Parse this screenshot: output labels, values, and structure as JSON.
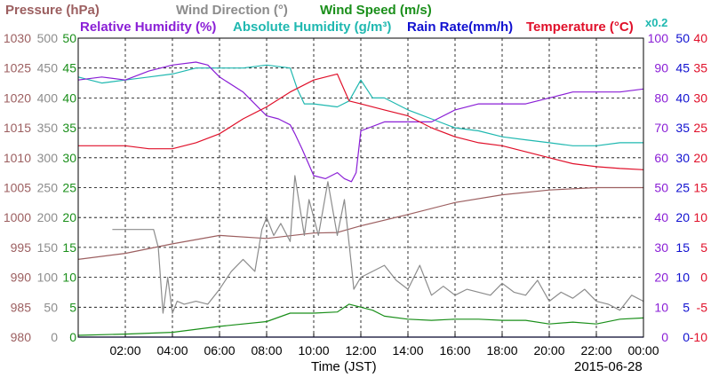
{
  "chart_data": {
    "type": "line",
    "legend": {
      "row1": [
        {
          "key": "pressure",
          "label": "Pressure (hPa)",
          "color": "#9c5f60"
        },
        {
          "key": "wind_dir",
          "label": "Wind Direction (°)",
          "color": "#8c8c8c"
        },
        {
          "key": "wind_speed",
          "label": "Wind Speed (m/s)",
          "color": "#1a8f1a"
        }
      ],
      "row2": [
        {
          "key": "rel_hum",
          "label": "Relative Humidity (%)",
          "color": "#8a1fd6"
        },
        {
          "key": "abs_hum",
          "label": "Absolute Humidity (g/m³)",
          "color": "#1fb8b0"
        },
        {
          "key": "rain",
          "label": "Rain Rate(mm/h)",
          "color": "#1010d0"
        },
        {
          "key": "temp",
          "label": "Temperature (°C)",
          "color": "#e0102a"
        }
      ],
      "note": "x0.2"
    },
    "xlabel": "Time (JST)",
    "date": "2015-06-28",
    "xlim": [
      0,
      24
    ],
    "x_ticks": [
      "02:00",
      "04:00",
      "06:00",
      "08:00",
      "10:00",
      "12:00",
      "14:00",
      "16:00",
      "18:00",
      "20:00",
      "22:00",
      "00:00"
    ],
    "axes": [
      {
        "key": "pressure",
        "color": "#9c5f60",
        "ticks": [
          "980",
          "985",
          "990",
          "995",
          "1000",
          "1005",
          "1010",
          "1015",
          "1020",
          "1025",
          "1030"
        ]
      },
      {
        "key": "wind_dir",
        "color": "#8c8c8c",
        "ticks": [
          "0",
          "50",
          "100",
          "150",
          "200",
          "250",
          "300",
          "350",
          "400",
          "450",
          "500"
        ]
      },
      {
        "key": "wind_speed",
        "color": "#1a8f1a",
        "ticks": [
          "0",
          "5",
          "10",
          "15",
          "20",
          "25",
          "30",
          "35",
          "40",
          "45",
          "50"
        ]
      },
      {
        "key": "rel_hum",
        "color": "#8a1fd6",
        "ticks": [
          "0",
          "10",
          "20",
          "30",
          "40",
          "50",
          "60",
          "70",
          "80",
          "90",
          "100"
        ]
      },
      {
        "key": "rain",
        "color": "#1010d0",
        "ticks": [
          "0",
          "5",
          "10",
          "15",
          "20",
          "25",
          "30",
          "35",
          "40",
          "45",
          "50"
        ]
      },
      {
        "key": "temp",
        "color": "#e0102a",
        "ticks": [
          "-10",
          "-5",
          "0",
          "5",
          "10",
          "15",
          "20",
          "25",
          "30",
          "35",
          "40"
        ]
      }
    ],
    "series": [
      {
        "name": "Pressure (hPa)",
        "key": "pressure",
        "color": "#9c5f60",
        "ylim": [
          980,
          1030
        ],
        "x": [
          0,
          2,
          4,
          6,
          8,
          10,
          11,
          12,
          14,
          16,
          18,
          20,
          22,
          24
        ],
        "y": [
          993.0,
          994.0,
          995.6,
          997.0,
          996.5,
          997.4,
          997.5,
          998.6,
          1000.5,
          1002.5,
          1003.8,
          1004.6,
          1005.0,
          1005.0
        ]
      },
      {
        "name": "Wind Direction (°)",
        "key": "wind_dir",
        "color": "#8c8c8c",
        "ylim": [
          0,
          500
        ],
        "x": [
          0,
          1.4,
          1.45,
          3.2,
          3.4,
          3.6,
          3.8,
          4.0,
          4.2,
          4.5,
          5.0,
          5.5,
          6.0,
          6.5,
          7.0,
          7.5,
          7.8,
          8.0,
          8.3,
          8.6,
          9.0,
          9.2,
          9.6,
          9.8,
          10.2,
          10.6,
          11.0,
          11.3,
          11.6,
          11.7,
          12.0,
          12.5,
          13.0,
          13.5,
          14.0,
          14.5,
          15.0,
          15.5,
          16.0,
          16.5,
          17.0,
          17.5,
          18.0,
          18.5,
          19.0,
          19.5,
          20.0,
          20.5,
          21.0,
          21.5,
          22.0,
          22.5,
          23.0,
          23.5,
          24.0
        ],
        "y": [
          null,
          null,
          180,
          180,
          150,
          40,
          100,
          40,
          60,
          55,
          60,
          55,
          80,
          110,
          130,
          110,
          180,
          200,
          170,
          190,
          160,
          270,
          170,
          230,
          170,
          260,
          170,
          230,
          120,
          80,
          100,
          110,
          120,
          95,
          80,
          120,
          70,
          85,
          70,
          80,
          75,
          70,
          90,
          75,
          70,
          95,
          60,
          75,
          65,
          80,
          60,
          55,
          45,
          70,
          60
        ]
      },
      {
        "name": "Wind Speed (m/s)",
        "key": "wind_speed",
        "color": "#1a8f1a",
        "ylim": [
          0,
          50
        ],
        "x": [
          0,
          2,
          4,
          6,
          8,
          9,
          10,
          11,
          11.5,
          12,
          12.5,
          13,
          14,
          15,
          16,
          17,
          18,
          19,
          20,
          21,
          22,
          23,
          24
        ],
        "y": [
          0.3,
          0.5,
          0.8,
          1.8,
          2.6,
          4.0,
          4.0,
          4.2,
          5.5,
          5.0,
          4.5,
          3.5,
          3.0,
          2.8,
          3.0,
          3.0,
          2.8,
          2.8,
          2.2,
          2.5,
          2.2,
          3.0,
          3.2
        ]
      },
      {
        "name": "Relative Humidity (%)",
        "key": "rel_hum",
        "color": "#8a1fd6",
        "ylim": [
          0,
          100
        ],
        "x": [
          0,
          1,
          2,
          3,
          4,
          5,
          5.5,
          6,
          7,
          8,
          8.5,
          9,
          9.2,
          9.5,
          10,
          10.5,
          11,
          11.3,
          11.6,
          11.8,
          12,
          13,
          14,
          15,
          16,
          17,
          18,
          19,
          20,
          21,
          22,
          23,
          24
        ],
        "y": [
          86,
          87,
          86,
          89,
          91,
          92,
          91,
          87,
          82,
          74,
          73,
          71,
          68,
          63,
          54,
          53,
          55,
          53,
          52,
          55,
          69,
          72,
          72,
          72,
          76,
          78,
          78,
          78,
          80,
          82,
          82,
          82,
          83
        ]
      },
      {
        "name": "Absolute Humidity (g/m³)",
        "key": "abs_hum",
        "color": "#1fb8b0",
        "ylim": [
          0,
          100
        ],
        "x": [
          0,
          1,
          2,
          3,
          4,
          5,
          6,
          7,
          8,
          9,
          9.3,
          9.6,
          10,
          11,
          11.5,
          12,
          12.5,
          13,
          14,
          15,
          16,
          17,
          18,
          19,
          20,
          21,
          22,
          23,
          24
        ],
        "y": [
          87,
          85,
          86,
          87,
          88,
          90,
          90,
          90,
          91,
          90,
          83,
          78,
          78,
          77,
          79,
          86,
          80,
          80,
          76,
          73,
          70,
          69,
          67,
          66,
          65,
          64,
          64,
          65,
          65
        ]
      },
      {
        "name": "Rain Rate(mm/h)",
        "key": "rain",
        "color": "#1010d0",
        "ylim": [
          0,
          50
        ],
        "x": [
          0,
          24
        ],
        "y": [
          0,
          0
        ]
      },
      {
        "name": "Temperature (°C)",
        "key": "temp",
        "color": "#e0102a",
        "ylim": [
          -10,
          40
        ],
        "x": [
          0,
          1,
          2,
          3,
          4,
          5,
          6,
          7,
          8,
          9,
          10,
          11,
          11.5,
          12,
          13,
          14,
          15,
          16,
          17,
          18,
          19,
          20,
          21,
          22,
          23,
          24
        ],
        "y": [
          22.0,
          22.0,
          22.0,
          21.5,
          21.5,
          22.5,
          24.0,
          26.5,
          28.5,
          31.0,
          33.0,
          34.0,
          29.5,
          29.0,
          28.0,
          27.0,
          25.0,
          23.5,
          22.5,
          22.0,
          21.0,
          20.0,
          19.0,
          18.5,
          18.2,
          18.0
        ]
      }
    ]
  }
}
